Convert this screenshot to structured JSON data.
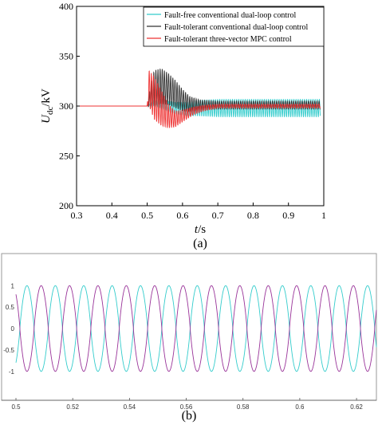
{
  "chart_data": [
    {
      "type": "line",
      "panel_label": "(a)",
      "xlabel_italic": "t",
      "xlabel_rest": "/s",
      "ylabel_main": "U",
      "ylabel_sub": "dc",
      "ylabel_rest": "/kV",
      "xlim": [
        0.3,
        1.0
      ],
      "ylim": [
        200,
        400
      ],
      "xticks": [
        0.3,
        0.4,
        0.5,
        0.6,
        0.7,
        0.8,
        0.9,
        1.0
      ],
      "xtick_labels": [
        "0.3",
        "0.4",
        "0.5",
        "0.6",
        "0.7",
        "0.8",
        "0.9",
        "1"
      ],
      "yticks": [
        200,
        250,
        300,
        350,
        400
      ],
      "ytick_labels": [
        "200",
        "250",
        "300",
        "350",
        "400"
      ],
      "legend_position": "top-right",
      "series": [
        {
          "name": "Fault-free conventional dual-loop control",
          "color": "#33cccc",
          "x": [
            0.3,
            0.5,
            0.52,
            0.55,
            0.58,
            0.61,
            0.64,
            0.7,
            0.8,
            0.9,
            0.99
          ],
          "y": [
            300,
            300,
            303,
            301,
            298,
            297,
            298,
            298,
            298,
            298,
            298
          ],
          "ripple_amplitude": [
            0,
            0,
            3,
            5,
            6,
            7,
            8,
            9,
            9,
            9,
            9
          ],
          "ripple_period": 0.006
        },
        {
          "name": "Fault-tolerant conventional dual-loop control",
          "color": "#333333",
          "x": [
            0.3,
            0.5,
            0.51,
            0.52,
            0.54,
            0.56,
            0.58,
            0.6,
            0.62,
            0.65,
            0.7,
            0.8,
            0.99
          ],
          "y": [
            300,
            300,
            310,
            318,
            320,
            317,
            312,
            306,
            302,
            301,
            301,
            301,
            301
          ],
          "ripple_amplitude": [
            0,
            0,
            12,
            18,
            18,
            16,
            14,
            11,
            8,
            5,
            4,
            4,
            4
          ],
          "ripple_period": 0.006
        },
        {
          "name": "Fault-tolerant three-vector MPC control",
          "color": "#ee3333",
          "x": [
            0.3,
            0.5,
            0.505,
            0.52,
            0.54,
            0.56,
            0.58,
            0.6,
            0.63,
            0.66,
            0.7,
            0.8,
            0.99
          ],
          "y": [
            300,
            300,
            318,
            308,
            298,
            290,
            287,
            290,
            295,
            298,
            300,
            300,
            300
          ],
          "ripple_amplitude": [
            0,
            0,
            18,
            22,
            18,
            12,
            8,
            6,
            4,
            3,
            2,
            2,
            2
          ],
          "ripple_period": 0.006
        }
      ]
    },
    {
      "type": "line",
      "panel_label": "(b)",
      "xlim": [
        0.5,
        0.627
      ],
      "ylim": [
        -1.6,
        1.6
      ],
      "xticks": [
        0.5,
        0.52,
        0.54,
        0.56,
        0.58,
        0.6,
        0.62
      ],
      "xtick_labels": [
        "0.5",
        "0.52",
        "0.54",
        "0.56",
        "0.58",
        "0.6",
        "0.62"
      ],
      "yticks": [
        1,
        0.5,
        0,
        -0.5,
        -1
      ],
      "ytick_labels": [
        "1",
        "0.5",
        "0",
        "-0.5",
        "-1"
      ],
      "series": [
        {
          "color": "#33cccc",
          "frequency_hz": 100,
          "amplitude": 1.0,
          "phase_deg": -50
        },
        {
          "color": "#993399",
          "frequency_hz": 100,
          "amplitude": 1.0,
          "phase_deg": 130
        }
      ]
    }
  ]
}
